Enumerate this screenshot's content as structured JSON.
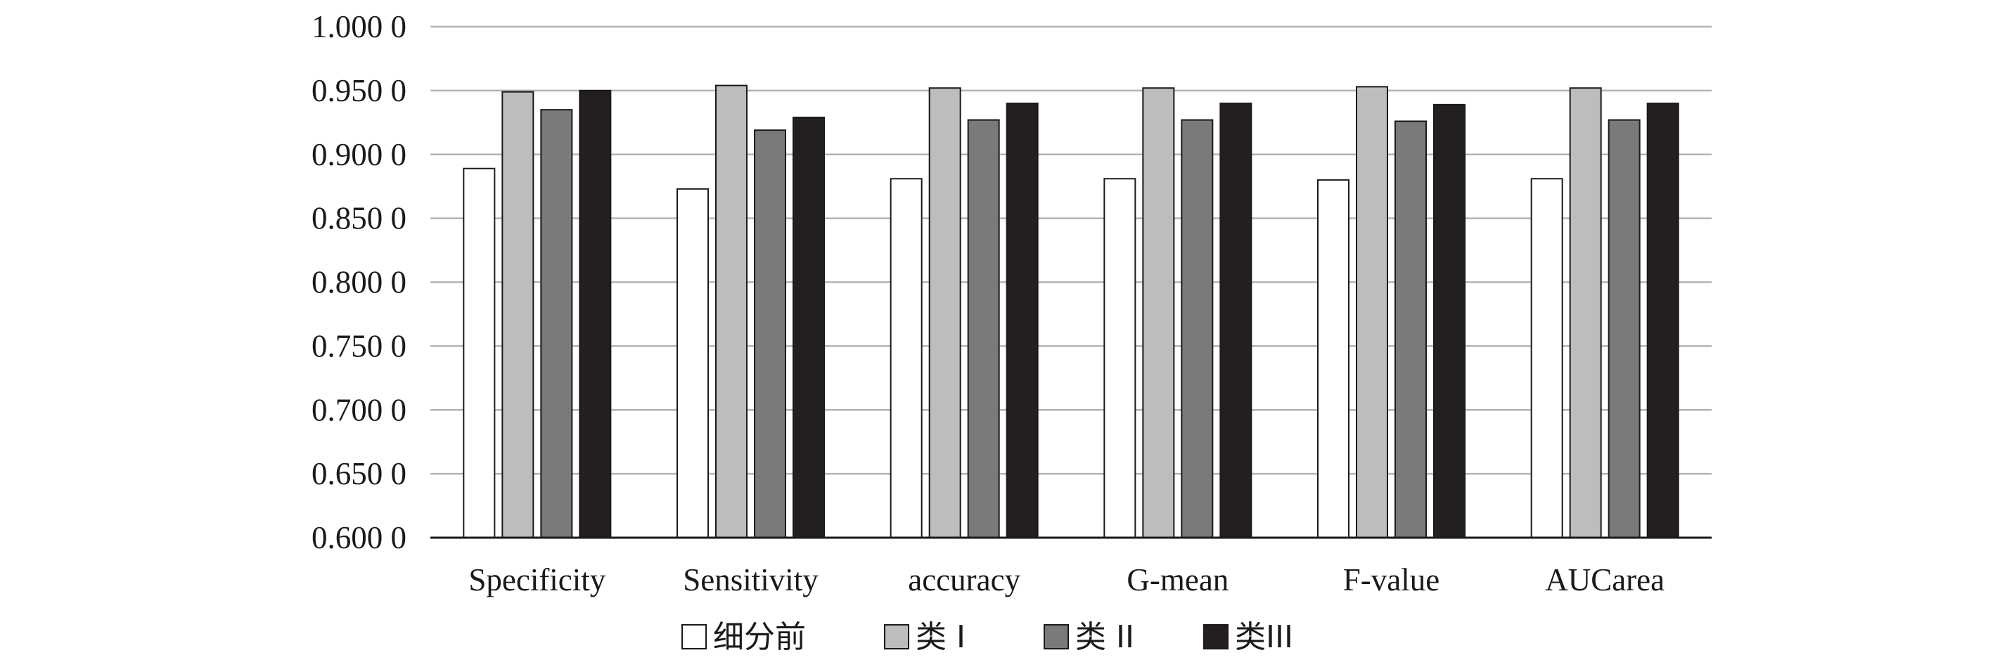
{
  "chart_data": {
    "type": "bar",
    "categories": [
      "Specificity",
      "Sensitivity",
      "accuracy",
      "G-mean",
      "F-value",
      "AUCarea"
    ],
    "series": [
      {
        "name": "细分前",
        "color": "#ffffff",
        "values": [
          0.889,
          0.873,
          0.881,
          0.881,
          0.88,
          0.881
        ]
      },
      {
        "name": "类 I",
        "color": "#bdbdbd",
        "values": [
          0.949,
          0.954,
          0.952,
          0.952,
          0.953,
          0.952
        ]
      },
      {
        "name": "类 II",
        "color": "#7a7a7a",
        "values": [
          0.935,
          0.919,
          0.927,
          0.927,
          0.926,
          0.927
        ]
      },
      {
        "name": "类III",
        "color": "#231f20",
        "values": [
          0.95,
          0.929,
          0.94,
          0.94,
          0.939,
          0.94
        ]
      }
    ],
    "ylim": [
      0.6,
      1.0
    ],
    "yticks": [
      "0.600 0",
      "0.650 0",
      "0.700 0",
      "0.750 0",
      "0.800 0",
      "0.850 0",
      "0.900 0",
      "0.950 0",
      "1.000 0"
    ],
    "grid": true,
    "legend": "bottom-center"
  }
}
